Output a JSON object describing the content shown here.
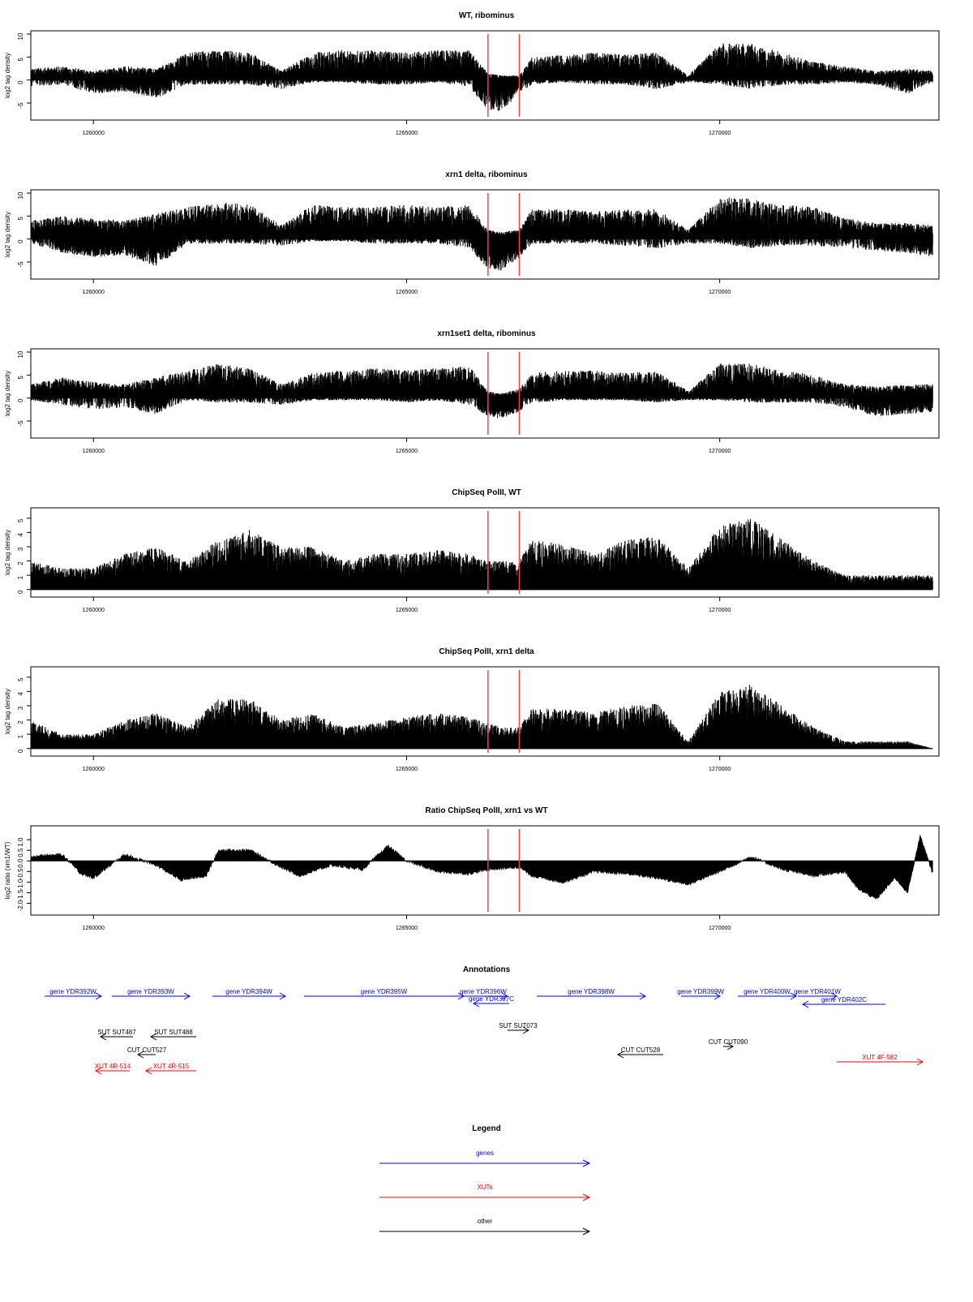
{
  "chart_data": [
    {
      "type": "bar",
      "title": "WT, ribominus",
      "ylabel": "log2 tag density",
      "ylim": [
        -8,
        10
      ],
      "yticks": [
        "10",
        "5",
        "0",
        "-5"
      ],
      "xlim": [
        1259000,
        1273500
      ],
      "xticks": [
        "1260000",
        "1265000",
        "1270000"
      ],
      "markers": [
        1266300,
        1266800
      ],
      "x": [
        1259000,
        1259500,
        1260000,
        1260500,
        1261000,
        1261500,
        1262000,
        1262500,
        1263000,
        1263500,
        1264000,
        1264500,
        1265000,
        1265500,
        1266000,
        1266300,
        1266500,
        1266800,
        1267000,
        1267500,
        1268000,
        1268500,
        1269000,
        1269500,
        1270000,
        1270500,
        1271000,
        1271500,
        1272000,
        1272500,
        1273000,
        1273400
      ],
      "series": [
        {
          "values": [
            2.5,
            3.0,
            2.0,
            3.0,
            2.5,
            6.0,
            6.5,
            6.0,
            2.0,
            6.0,
            6.5,
            6.5,
            6.0,
            6.5,
            6.5,
            1.5,
            1.0,
            1.0,
            5.0,
            5.5,
            6.0,
            5.5,
            6.0,
            1.0,
            8.0,
            8.0,
            6.0,
            4.0,
            3.0,
            2.0,
            2.5,
            2.0
          ]
        },
        {
          "values": [
            -1.5,
            -1.0,
            -3.0,
            -2.5,
            -4.0,
            -1.0,
            -1.0,
            -1.0,
            -2.0,
            -0.5,
            -0.5,
            -1.0,
            -1.0,
            -0.5,
            -1.5,
            -6.5,
            -7.0,
            -3.0,
            -1.0,
            -0.5,
            -1.0,
            -1.0,
            -2.0,
            -0.5,
            -1.0,
            -2.0,
            -1.0,
            -1.0,
            -0.5,
            -1.0,
            -3.0,
            -0.5
          ]
        }
      ]
    },
    {
      "type": "bar",
      "title": "xrn1 delta, ribominus",
      "ylabel": "log2 tag density",
      "ylim": [
        -8,
        10
      ],
      "yticks": [
        "10",
        "5",
        "0",
        "-5"
      ],
      "xlim": [
        1259000,
        1273500
      ],
      "xticks": [
        "1260000",
        "1265000",
        "1270000"
      ],
      "markers": [
        1266300,
        1266800
      ],
      "x": [
        1259000,
        1259500,
        1260000,
        1260500,
        1261000,
        1261500,
        1262000,
        1262500,
        1263000,
        1263500,
        1264000,
        1264500,
        1265000,
        1265500,
        1266000,
        1266300,
        1266500,
        1266800,
        1267000,
        1267500,
        1268000,
        1268500,
        1269000,
        1269500,
        1270000,
        1270500,
        1271000,
        1271500,
        1272000,
        1272500,
        1273000,
        1273400
      ],
      "series": [
        {
          "values": [
            4.0,
            5.0,
            4.5,
            4.0,
            5.5,
            7.0,
            8.0,
            7.5,
            3.0,
            7.5,
            7.0,
            7.0,
            7.5,
            7.0,
            7.5,
            2.0,
            1.5,
            2.0,
            6.5,
            6.5,
            6.0,
            6.5,
            6.5,
            2.0,
            9.0,
            9.0,
            7.5,
            7.0,
            4.5,
            3.5,
            3.5,
            3.0
          ]
        },
        {
          "values": [
            -1.0,
            -3.0,
            -4.0,
            -3.5,
            -6.0,
            -1.0,
            -1.0,
            -1.0,
            -1.5,
            -0.5,
            -0.5,
            -1.0,
            -1.0,
            -1.0,
            -2.0,
            -6.5,
            -7.0,
            -4.0,
            -1.0,
            -1.0,
            -1.0,
            -1.5,
            -2.0,
            -1.0,
            -1.0,
            -2.0,
            -1.5,
            -1.5,
            -2.0,
            -2.5,
            -3.0,
            -4.0
          ]
        }
      ]
    },
    {
      "type": "bar",
      "title": "xrn1set1 delta, ribominus",
      "ylabel": "log2 tag density",
      "ylim": [
        -8,
        10
      ],
      "yticks": [
        "10",
        "5",
        "0",
        "-5"
      ],
      "xlim": [
        1259000,
        1273500
      ],
      "xticks": [
        "1260000",
        "1265000",
        "1270000"
      ],
      "markers": [
        1266300,
        1266800
      ],
      "x": [
        1259000,
        1259500,
        1260000,
        1260500,
        1261000,
        1261500,
        1262000,
        1262500,
        1263000,
        1263500,
        1264000,
        1264500,
        1265000,
        1265500,
        1266000,
        1266300,
        1266500,
        1266800,
        1267000,
        1267500,
        1268000,
        1268500,
        1269000,
        1269500,
        1270000,
        1270500,
        1271000,
        1271500,
        1272000,
        1272500,
        1273000,
        1273400
      ],
      "series": [
        {
          "values": [
            3.0,
            4.5,
            3.5,
            3.0,
            4.5,
            6.0,
            7.5,
            6.5,
            3.0,
            5.5,
            6.0,
            6.5,
            6.0,
            6.5,
            7.0,
            1.5,
            1.0,
            2.0,
            5.5,
            6.0,
            6.0,
            5.5,
            6.0,
            1.5,
            7.5,
            7.5,
            6.0,
            5.0,
            3.0,
            2.5,
            3.0,
            3.0
          ]
        },
        {
          "values": [
            -0.5,
            -1.5,
            -2.5,
            -2.0,
            -3.5,
            -0.5,
            -1.0,
            -1.0,
            -1.5,
            -0.5,
            -0.5,
            -0.5,
            -1.0,
            -0.5,
            -1.5,
            -4.0,
            -4.5,
            -3.0,
            -1.0,
            -0.5,
            -0.5,
            -0.5,
            -1.0,
            -0.5,
            -0.5,
            -1.0,
            -1.0,
            -1.0,
            -2.0,
            -4.0,
            -3.5,
            -3.0
          ]
        }
      ]
    },
    {
      "type": "bar",
      "title": "ChipSeq PolII, WT",
      "ylabel": "log2 tag density",
      "ylim": [
        -0.3,
        5.5
      ],
      "yticks": [
        "5",
        "4",
        "3",
        "2",
        "1",
        "0"
      ],
      "xlim": [
        1259000,
        1273500
      ],
      "xticks": [
        "1260000",
        "1265000",
        "1270000"
      ],
      "markers": [
        1266300,
        1266800
      ],
      "x": [
        1259000,
        1259500,
        1260000,
        1260500,
        1261000,
        1261500,
        1262000,
        1262500,
        1263000,
        1263500,
        1264000,
        1264500,
        1265000,
        1265500,
        1266000,
        1266300,
        1266500,
        1266800,
        1267000,
        1267500,
        1268000,
        1268500,
        1269000,
        1269500,
        1270000,
        1270500,
        1271000,
        1271500,
        1272000,
        1272500,
        1273000,
        1273400
      ],
      "series": [
        {
          "values": [
            2.0,
            1.5,
            1.5,
            2.5,
            3.0,
            2.0,
            3.5,
            4.2,
            3.0,
            3.0,
            2.0,
            2.5,
            2.5,
            2.8,
            2.5,
            2.0,
            2.0,
            2.0,
            3.5,
            3.2,
            2.5,
            3.5,
            3.8,
            1.5,
            4.5,
            5.0,
            3.5,
            2.0,
            1.0,
            1.0,
            1.0,
            1.0
          ]
        }
      ]
    },
    {
      "type": "bar",
      "title": "ChipSeq PolII, xrn1 delta",
      "ylabel": "log2 tag density",
      "ylim": [
        -0.3,
        5.5
      ],
      "yticks": [
        "5",
        "4",
        "3",
        "2",
        "1",
        "0"
      ],
      "xlim": [
        1259000,
        1273500
      ],
      "xticks": [
        "1260000",
        "1265000",
        "1270000"
      ],
      "markers": [
        1266300,
        1266800
      ],
      "x": [
        1259000,
        1259500,
        1260000,
        1260500,
        1261000,
        1261500,
        1262000,
        1262500,
        1263000,
        1263500,
        1264000,
        1264500,
        1265000,
        1265500,
        1266000,
        1266300,
        1266500,
        1266800,
        1267000,
        1267500,
        1268000,
        1268500,
        1269000,
        1269500,
        1270000,
        1270500,
        1271000,
        1271500,
        1272000,
        1272500,
        1273000,
        1273400
      ],
      "series": [
        {
          "values": [
            2.0,
            1.0,
            1.0,
            2.0,
            2.5,
            1.5,
            3.5,
            3.5,
            2.0,
            2.5,
            1.5,
            1.8,
            2.2,
            2.5,
            2.2,
            1.8,
            1.5,
            1.5,
            2.8,
            2.8,
            2.5,
            3.0,
            3.2,
            0.5,
            4.0,
            4.5,
            3.0,
            1.5,
            0.5,
            0.5,
            0.5,
            0.0
          ]
        }
      ]
    },
    {
      "type": "area",
      "title": "Ratio ChipSeq PolII, xrn1 vs WT",
      "ylabel": "log2 ratio (xrn1/WT)",
      "ylim": [
        -2.4,
        1.5
      ],
      "yticks": [
        "1.0",
        "0.5",
        "0.0",
        "-0.5",
        "-1.0",
        "-1.5",
        "-2.0"
      ],
      "xlim": [
        1259000,
        1273500
      ],
      "xticks": [
        "1260000",
        "1265000",
        "1270000"
      ],
      "markers": [
        1266300,
        1266800
      ],
      "x": [
        1259000,
        1259500,
        1259800,
        1260000,
        1260500,
        1261000,
        1261400,
        1261800,
        1262000,
        1262500,
        1263000,
        1263300,
        1263800,
        1264300,
        1264700,
        1265000,
        1265500,
        1266000,
        1266300,
        1266800,
        1267000,
        1267500,
        1268000,
        1268500,
        1269000,
        1269500,
        1270000,
        1270500,
        1271000,
        1271500,
        1272000,
        1272200,
        1272500,
        1272800,
        1273000,
        1273200,
        1273400
      ],
      "series": [
        {
          "values": [
            0.2,
            0.3,
            -0.6,
            -0.8,
            0.3,
            -0.2,
            -0.9,
            -0.7,
            0.5,
            0.5,
            -0.3,
            -0.7,
            -0.2,
            -0.4,
            0.7,
            0.0,
            -0.5,
            -0.6,
            -0.4,
            -0.3,
            -0.7,
            -1.0,
            -0.5,
            -0.6,
            -0.8,
            -1.1,
            -0.5,
            0.2,
            -0.4,
            -0.7,
            -0.5,
            -1.3,
            -1.8,
            -0.8,
            -1.5,
            1.2,
            -0.6
          ]
        }
      ]
    }
  ],
  "annotations": {
    "title": "Annotations",
    "genes": [
      {
        "label": "gene YDR392W",
        "x1": 55,
        "x2": 125,
        "y": 1228,
        "dir": "right"
      },
      {
        "label": "gene YDR393W",
        "x1": 138,
        "x2": 234,
        "y": 1228,
        "dir": "right"
      },
      {
        "label": "gene YDR394W",
        "x1": 262,
        "x2": 352,
        "y": 1228,
        "dir": "right"
      },
      {
        "label": "gene YDR395W",
        "x1": 375,
        "x2": 572,
        "y": 1228,
        "dir": "right"
      },
      {
        "label": "gene YDR396W",
        "x1": 566,
        "x2": 626,
        "y": 1228,
        "dir": "right"
      },
      {
        "label": "gene YDR397C",
        "x1": 584,
        "x2": 628,
        "y": 1237,
        "dir": "left"
      },
      {
        "label": "gene YDR398W",
        "x1": 662,
        "x2": 796,
        "y": 1228,
        "dir": "right"
      },
      {
        "label": "gene YDR399W",
        "x1": 840,
        "x2": 888,
        "y": 1228,
        "dir": "right"
      },
      {
        "label": "gene YDR400W",
        "x1": 910,
        "x2": 982,
        "y": 1228,
        "dir": "right"
      },
      {
        "label": "gene YDR401W",
        "x1": 984,
        "x2": 1032,
        "y": 1228,
        "dir": "right"
      },
      {
        "label": "gene YDR402C",
        "x1": 990,
        "x2": 1092,
        "y": 1238,
        "dir": "left"
      }
    ],
    "others": [
      {
        "label": "SUT SUT487",
        "x1": 124,
        "x2": 164,
        "y": 1278,
        "dir": "left"
      },
      {
        "label": "SUT SUT488",
        "x1": 186,
        "x2": 242,
        "y": 1278,
        "dir": "left"
      },
      {
        "label": "CUT CUT527",
        "x1": 170,
        "x2": 192,
        "y": 1300,
        "dir": "left"
      },
      {
        "label": "SUT SUT073",
        "x1": 626,
        "x2": 652,
        "y": 1270,
        "dir": "right"
      },
      {
        "label": "CUT CUT528",
        "x1": 762,
        "x2": 818,
        "y": 1300,
        "dir": "left"
      },
      {
        "label": "CUT CUT090",
        "x1": 892,
        "x2": 904,
        "y": 1290,
        "dir": "right"
      }
    ],
    "xuts": [
      {
        "label": "XUT 4R-514",
        "x1": 118,
        "x2": 160,
        "y": 1320,
        "dir": "left"
      },
      {
        "label": "XUT 4R-515",
        "x1": 180,
        "x2": 242,
        "y": 1320,
        "dir": "left"
      },
      {
        "label": "XUT 4F-582",
        "x1": 1032,
        "x2": 1138,
        "y": 1309,
        "dir": "right"
      }
    ]
  },
  "legend": {
    "title": "Legend",
    "entries": [
      {
        "label": "genes",
        "color": "#0000ff"
      },
      {
        "label": "XUTs",
        "color": "#ff0000"
      },
      {
        "label": "other",
        "color": "#000000"
      }
    ]
  },
  "colors": {
    "genes": "#0000ff",
    "xuts": "#ff0000",
    "other": "#000000",
    "markers": "#ff4040"
  }
}
